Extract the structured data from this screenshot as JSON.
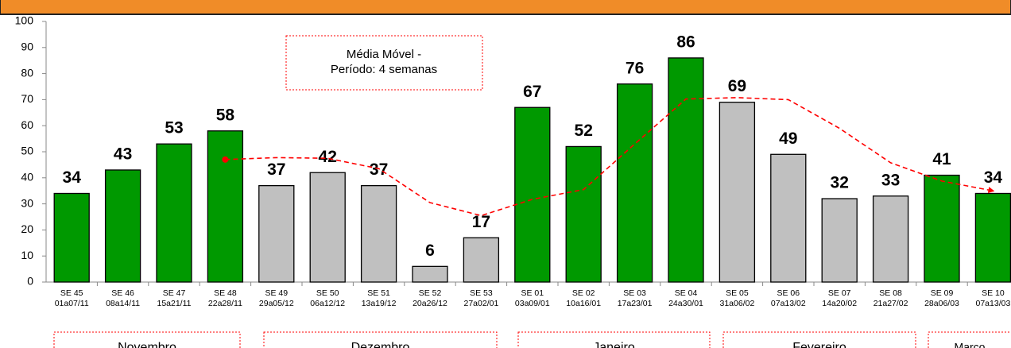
{
  "chart_data": {
    "type": "bar",
    "annotation": [
      "Média Móvel -",
      "Período: 4 semanas"
    ],
    "categories": [
      "SE 45",
      "SE 46",
      "SE 47",
      "SE 48",
      "SE 49",
      "SE 50",
      "SE 51",
      "SE 52",
      "SE 53",
      "SE 01",
      "SE 02",
      "SE 03",
      "SE 04",
      "SE 05",
      "SE 06",
      "SE 07",
      "SE 08",
      "SE 09",
      "SE 10"
    ],
    "date_ranges": [
      "01a07/11",
      "08a14/11",
      "15a21/11",
      "22a28/11",
      "29a05/12",
      "06a12/12",
      "13a19/12",
      "20a26/12",
      "27a02/01",
      "03a09/01",
      "10a16/01",
      "17a23/01",
      "24a30/01",
      "31a06/02",
      "07a13/02",
      "14a20/02",
      "21a27/02",
      "28a06/03",
      "07a13/03"
    ],
    "values": [
      34,
      43,
      53,
      58,
      37,
      42,
      37,
      6,
      17,
      67,
      52,
      76,
      86,
      69,
      49,
      32,
      33,
      41,
      34
    ],
    "colors": [
      "#009900",
      "#009900",
      "#009900",
      "#009900",
      "#c0c0c0",
      "#c0c0c0",
      "#c0c0c0",
      "#c0c0c0",
      "#c0c0c0",
      "#009900",
      "#009900",
      "#009900",
      "#009900",
      "#c0c0c0",
      "#c0c0c0",
      "#c0c0c0",
      "#c0c0c0",
      "#009900",
      "#009900"
    ],
    "moving_average": {
      "color": "#ff0000",
      "values": [
        null,
        null,
        null,
        47,
        47.75,
        47.5,
        43.5,
        30.5,
        25.5,
        31.75,
        35.5,
        53,
        70.25,
        70.75,
        70,
        59,
        45.75,
        38.75,
        35
      ]
    },
    "months": [
      "Novembro",
      "Dezembro",
      "Janeiro",
      "Fevereiro",
      "Marco"
    ],
    "ylim": [
      0,
      100
    ],
    "yticks": [
      0,
      10,
      20,
      30,
      40,
      50,
      60,
      70,
      80,
      90,
      100
    ]
  }
}
